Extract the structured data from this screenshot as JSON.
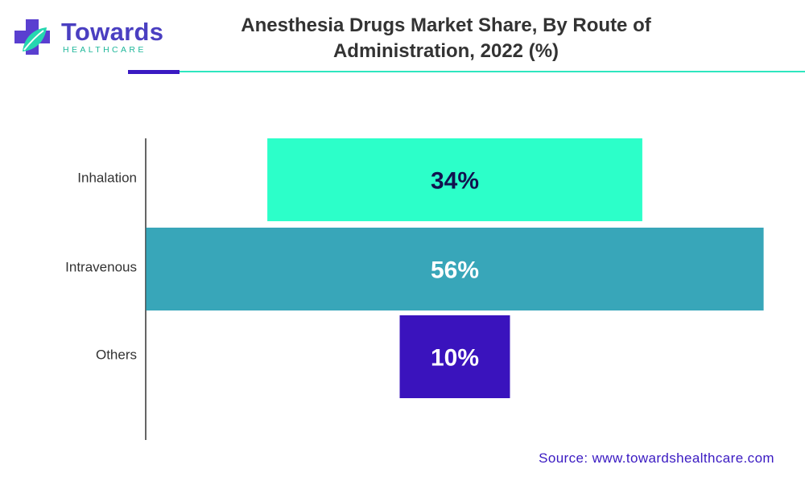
{
  "brand": {
    "name": "Towards",
    "sub": "HEALTHCARE",
    "primary_color": "#4a3fc1",
    "accent_color": "#1fb79a"
  },
  "header": {
    "title_line1": "Anesthesia Drugs Market Share, By Route of",
    "title_line2": "Administration, 2022 (%)"
  },
  "chart_data": {
    "type": "bar",
    "orientation": "horizontal",
    "layout": "centered-funnel",
    "categories": [
      "Inhalation",
      "Intravenous",
      "Others"
    ],
    "values": [
      34,
      56,
      10
    ],
    "value_labels": [
      "34%",
      "56%",
      "10%"
    ],
    "colors": [
      "#2cffc9",
      "#38a6b9",
      "#3a13bd"
    ],
    "label_colors": [
      "#12124f",
      "#ffffff",
      "#ffffff"
    ],
    "grid": false,
    "legend": "none"
  },
  "footer": {
    "source": "Source: www.towardshealthcare.com"
  }
}
